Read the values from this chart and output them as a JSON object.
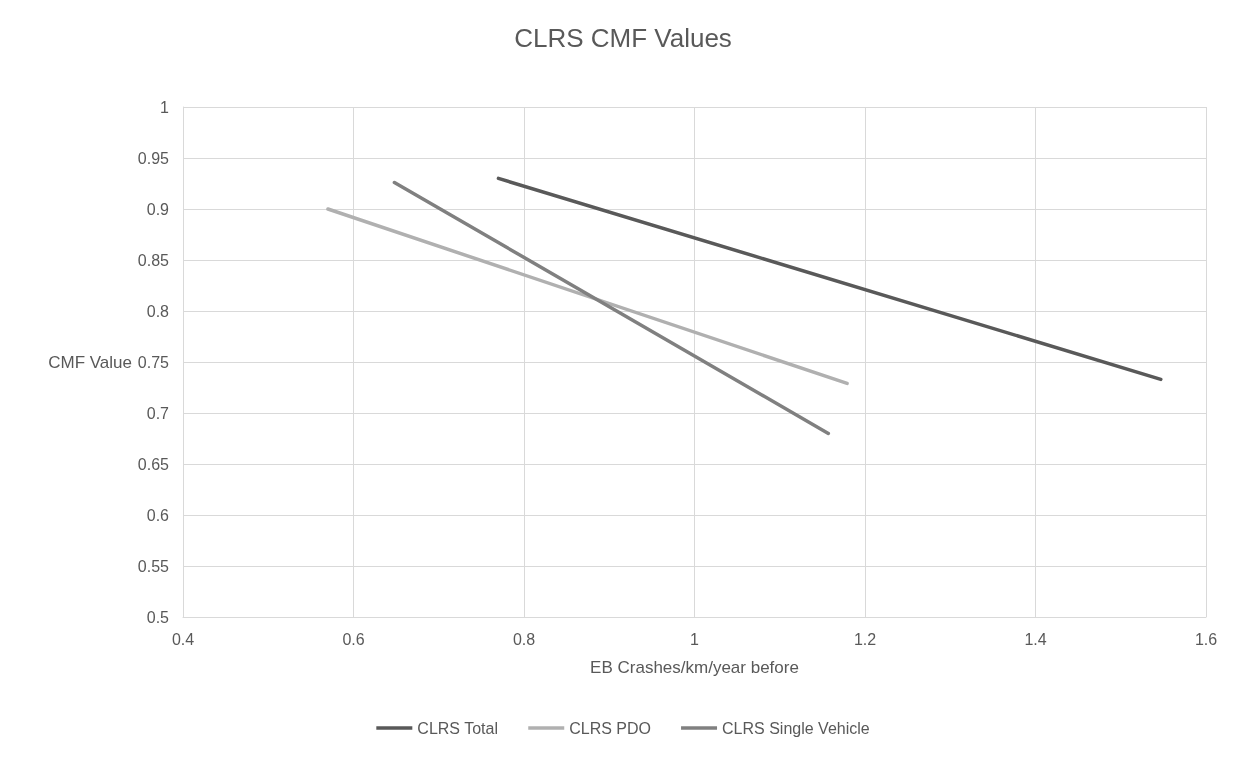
{
  "chart_data": {
    "type": "line",
    "title": "CLRS CMF Values",
    "xlabel": "EB Crashes/km/year before",
    "ylabel": "CMF Value",
    "series": [
      {
        "name": "CLRS Total",
        "color": "#595959",
        "x": [
          0.77,
          1.547
        ],
        "values": [
          0.93,
          0.733
        ]
      },
      {
        "name": "CLRS PDO",
        "color": "#b0b0b0",
        "x": [
          0.57,
          1.179
        ],
        "values": [
          0.9,
          0.729
        ]
      },
      {
        "name": "CLRS Single Vehicle",
        "color": "#808080",
        "x": [
          0.648,
          1.157
        ],
        "values": [
          0.926,
          0.68
        ]
      }
    ],
    "xlim": [
      0.4,
      1.6
    ],
    "xticks": [
      0.4,
      0.6,
      0.8,
      1,
      1.2,
      1.4,
      1.6
    ],
    "ylim": [
      0.5,
      1
    ],
    "yticks": [
      0.5,
      0.55,
      0.6,
      0.65,
      0.7,
      0.75,
      0.8,
      0.85,
      0.9,
      0.95,
      1
    ],
    "grid": true,
    "legend": "bottom",
    "marker": "none",
    "line_style": "solid"
  }
}
